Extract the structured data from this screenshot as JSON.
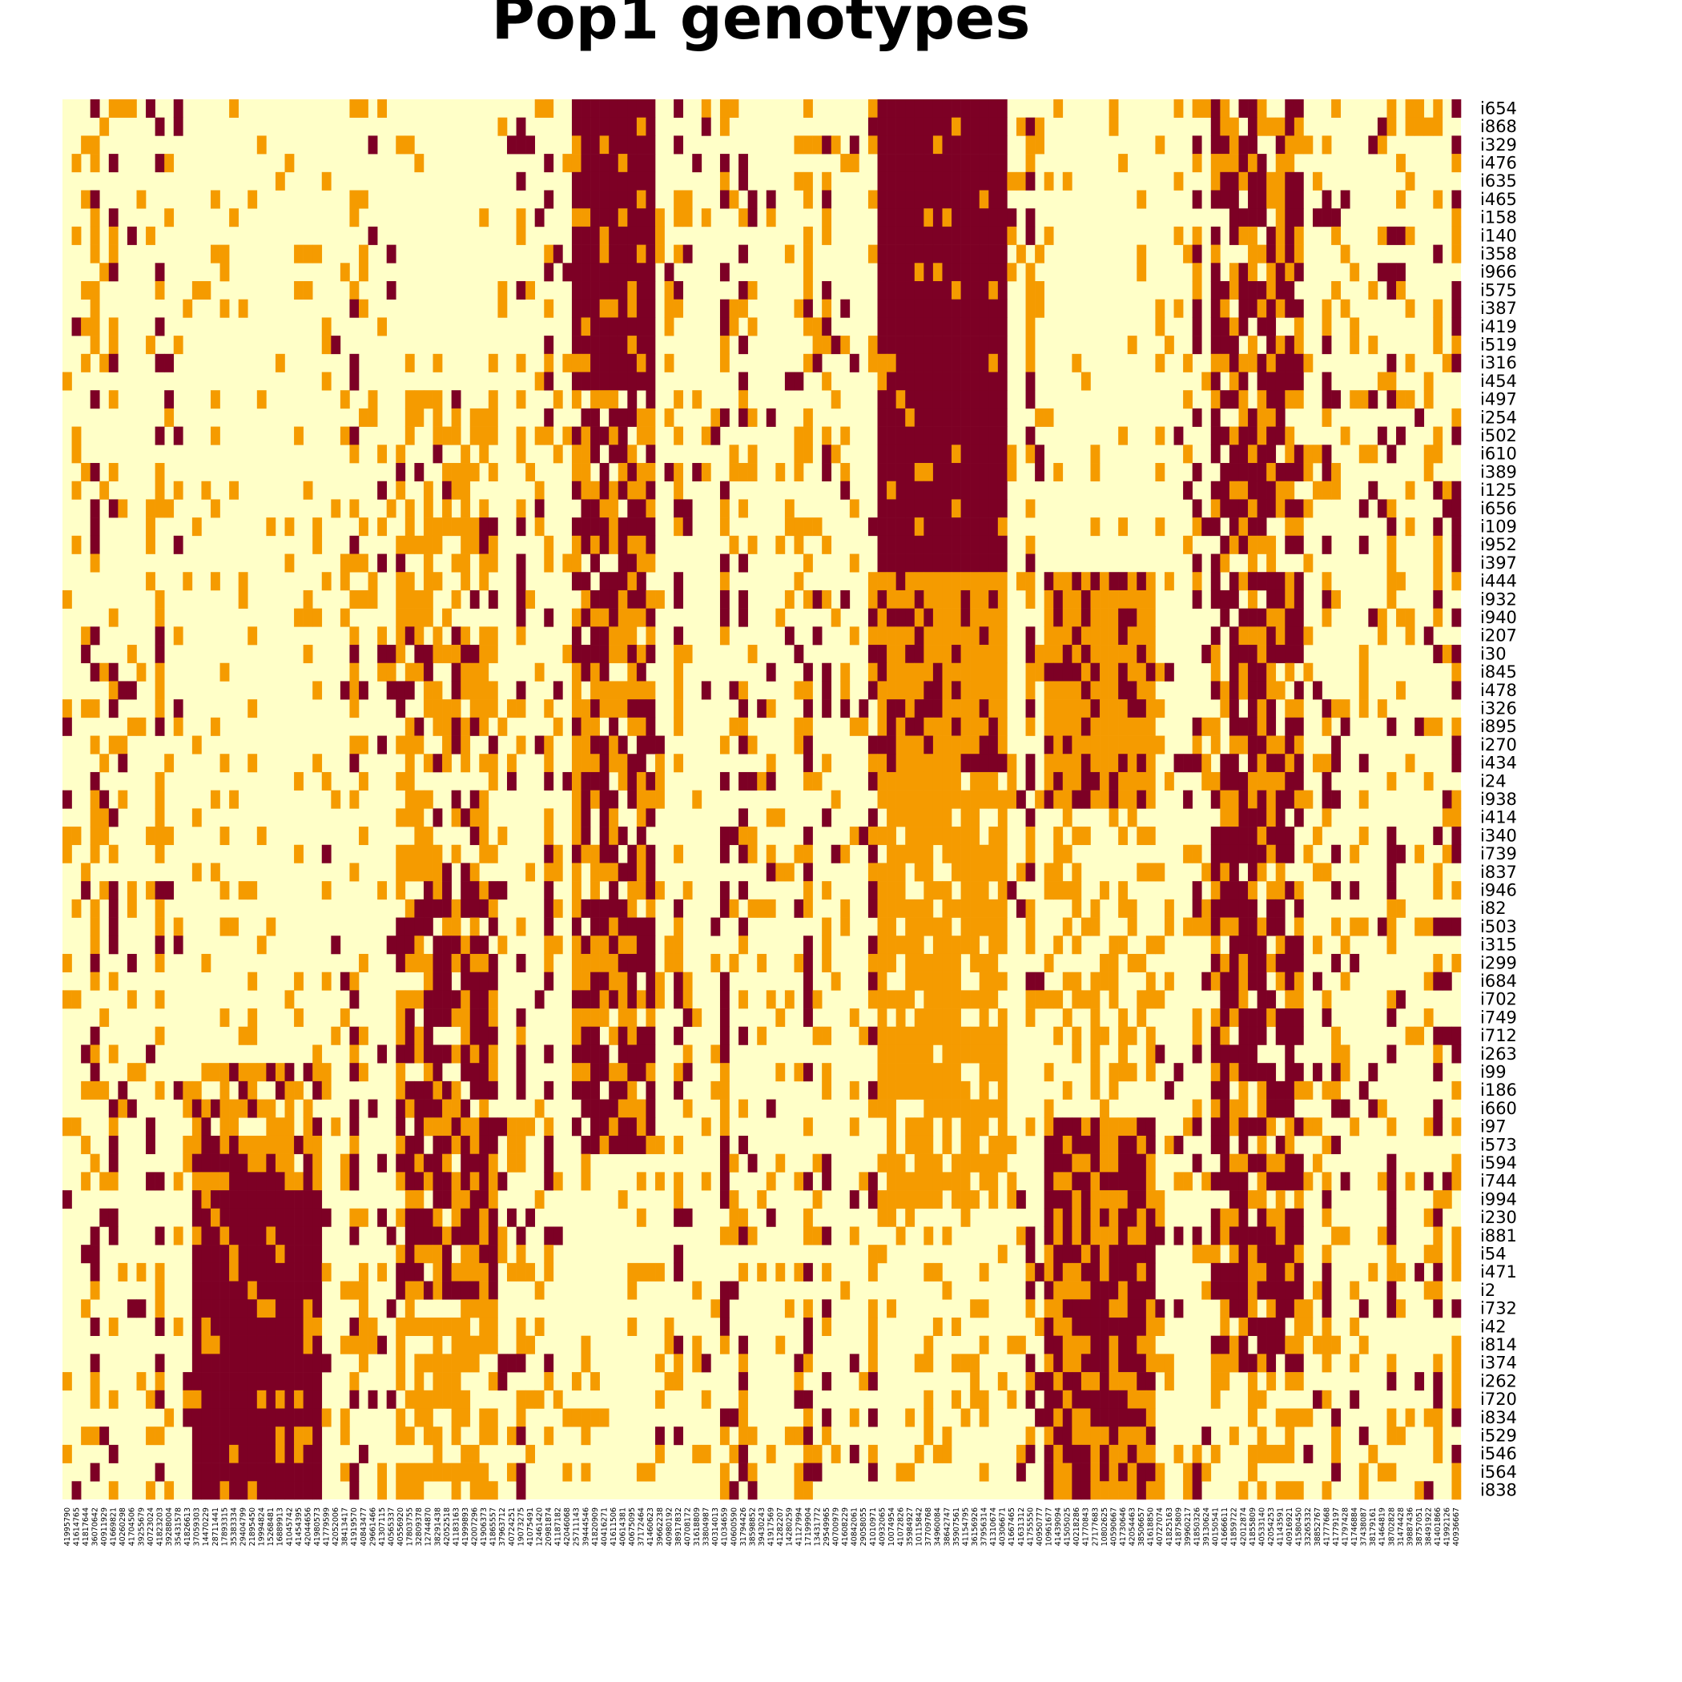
{
  "chart_data": {
    "type": "heatmap",
    "title": "Pop1 genotypes",
    "xlabel": "",
    "ylabel": "",
    "legend": "none",
    "color_scale": {
      "0": "#FFFFC8",
      "1": "#F59B00",
      "2": "#7D0025"
    },
    "genotype_values": [
      0,
      1,
      2
    ],
    "row_labels": [
      "i654",
      "i868",
      "i329",
      "i476",
      "i635",
      "i465",
      "i158",
      "i140",
      "i358",
      "i966",
      "i575",
      "i387",
      "i419",
      "i519",
      "i316",
      "i454",
      "i497",
      "i254",
      "i502",
      "i610",
      "i389",
      "i125",
      "i656",
      "i109",
      "i952",
      "i397",
      "i444",
      "i932",
      "i940",
      "i207",
      "i30",
      "i845",
      "i478",
      "i326",
      "i895",
      "i270",
      "i434",
      "i24",
      "i938",
      "i414",
      "i340",
      "i739",
      "i837",
      "i946",
      "i82",
      "i503",
      "i315",
      "i299",
      "i684",
      "i702",
      "i749",
      "i712",
      "i263",
      "i99",
      "i186",
      "i660",
      "i97",
      "i573",
      "i594",
      "i744",
      "i994",
      "i230",
      "i881",
      "i54",
      "i471",
      "i2",
      "i732",
      "i42",
      "i814",
      "i374",
      "i262",
      "i720",
      "i834",
      "i529",
      "i546",
      "i564",
      "i838"
    ],
    "col_labels": [
      "41995790",
      "41614765",
      "41817644",
      "36070642",
      "40911929",
      "41669821",
      "40260298",
      "41704506",
      "39255679",
      "40723024",
      "41823203",
      "39288004",
      "35431578",
      "41826613",
      "37059303",
      "14470229",
      "28711441",
      "17893315",
      "35383334",
      "29404799",
      "21895450",
      "19994824",
      "15268481",
      "16889913",
      "41045742",
      "41454395",
      "42044656",
      "41980573",
      "41779599",
      "42052006",
      "38413417",
      "41919570",
      "40843477",
      "29661466",
      "41307115",
      "40565337",
      "40556920",
      "17803755",
      "32809378",
      "12744870",
      "38291438",
      "42052518",
      "41183163",
      "41999893",
      "42007296",
      "41906373",
      "41865557",
      "37963712",
      "40724251",
      "19073275",
      "41075491",
      "12461420",
      "20981874",
      "41187182",
      "42046068",
      "25711143",
      "39444546",
      "41820909",
      "40416271",
      "41611506",
      "40614381",
      "40675095",
      "37172464",
      "41460623",
      "39662238",
      "40980192",
      "38917832",
      "40708172",
      "31618809",
      "33804987",
      "40314013",
      "41034659",
      "40600590",
      "31794426",
      "38598852",
      "39430243",
      "41917569",
      "41282207",
      "14280259",
      "41127994",
      "17199904",
      "13431772",
      "29549965",
      "40700979",
      "41608229",
      "40842061",
      "29058055",
      "41010971",
      "40932065",
      "10074954",
      "41072826",
      "35984927",
      "10115842",
      "37709768",
      "34960084",
      "38642747",
      "35907561",
      "41154795",
      "36156926",
      "37956314",
      "41310674",
      "40306671",
      "41667465",
      "41631312",
      "41755550",
      "40950777",
      "10961677",
      "41439094",
      "41505025",
      "40218286",
      "41770843",
      "27177683",
      "10802625",
      "40590667",
      "41730646",
      "42054463",
      "38506657",
      "41618850",
      "40727074",
      "41825163",
      "41875809",
      "39960217",
      "41850326",
      "39130624",
      "40150541",
      "41666611",
      "41859722",
      "42012874",
      "41855809",
      "40533140",
      "42054253",
      "41143591",
      "40916921",
      "41580450",
      "33265332",
      "38852767",
      "41777668",
      "41779197",
      "41797428",
      "41746884",
      "37438087",
      "38179161",
      "41464819",
      "38702828",
      "31474428",
      "39887436",
      "38757051",
      "38491922",
      "41401866",
      "41992126",
      "40936667"
    ],
    "block_columns": [
      {
        "from_col": 14,
        "to_col": 27,
        "pattern": "mostly 0 top, mixed 1 middle, mostly 2 bottom"
      },
      {
        "from_col": 36,
        "to_col": 46,
        "pattern": "mostly 0 top, mixed 1/2 lower"
      },
      {
        "from_col": 55,
        "to_col": 63,
        "pattern": "mostly 2 top, mixed 1 middle, mostly 0 bottom"
      },
      {
        "from_col": 88,
        "to_col": 101,
        "pattern": "mostly 2 top, 1 middle, mostly 0 bottom"
      },
      {
        "from_col": 106,
        "to_col": 117,
        "pattern": "mostly 0 top, 1 middle, 2 bottom"
      },
      {
        "from_col": 124,
        "to_col": 133,
        "pattern": "mixed 1/2 top-middle, mixed bottom"
      }
    ]
  }
}
